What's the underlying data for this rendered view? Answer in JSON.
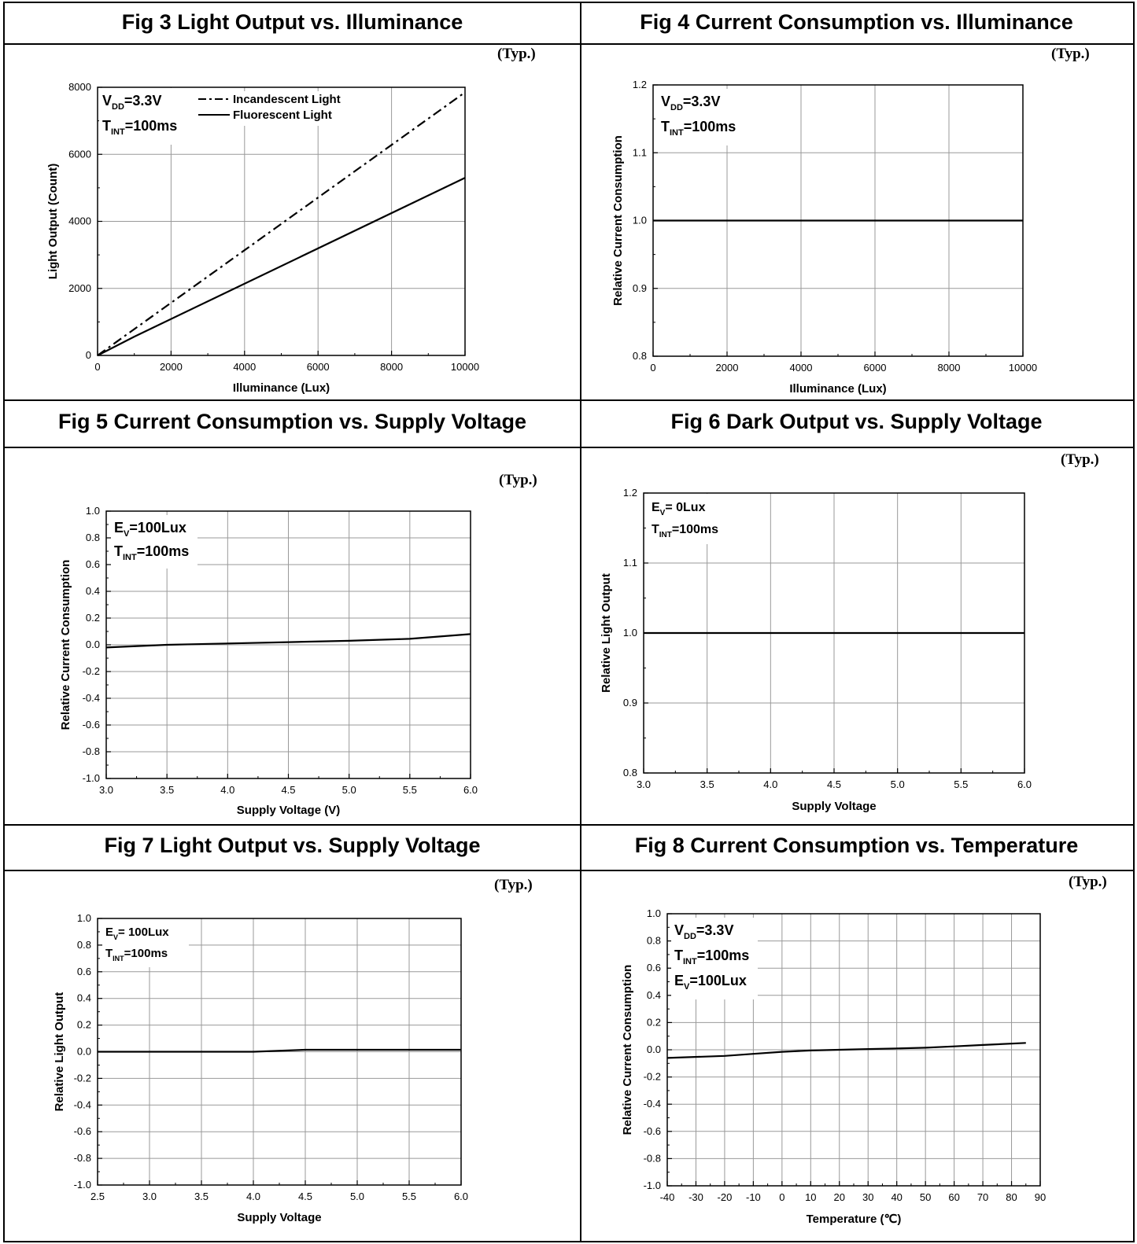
{
  "typ_label": "(Typ.)",
  "figures": [
    {
      "title": "Fig 3 Light Output vs. Illuminance",
      "chart_data": {
        "type": "line",
        "xlabel": "Illuminance (Lux)",
        "ylabel": "Light Output (Count)",
        "xlim": [
          0,
          10000
        ],
        "ylim": [
          0,
          8000
        ],
        "x_ticks": [
          "0",
          "2000",
          "4000",
          "6000",
          "8000",
          "10000"
        ],
        "y_ticks": [
          "0",
          "2000",
          "4000",
          "6000",
          "8000"
        ],
        "grid": true,
        "annotation": [
          "V_DD=3.3V",
          "T_INT=100ms"
        ],
        "legend": "top-left",
        "series": [
          {
            "name": "Incandescent Light",
            "style": "dashdot",
            "x": [
              0,
              10000
            ],
            "y": [
              0,
              7850
            ]
          },
          {
            "name": "Fluorescent Light",
            "style": "solid",
            "x": [
              0,
              1000,
              10000
            ],
            "y": [
              0,
              560,
              5300
            ]
          }
        ]
      }
    },
    {
      "title": "Fig 4 Current Consumption vs. Illuminance",
      "chart_data": {
        "type": "line",
        "xlabel": "Illuminance (Lux)",
        "ylabel": "Relative Current Consumption",
        "xlim": [
          0,
          10000
        ],
        "ylim": [
          0.8,
          1.2
        ],
        "x_ticks": [
          "0",
          "2000",
          "4000",
          "6000",
          "8000",
          "10000"
        ],
        "y_ticks": [
          "0.8",
          "0.9",
          "1.0",
          "1.1",
          "1.2"
        ],
        "grid": true,
        "annotation": [
          "V_DD=3.3V",
          "T_INT=100ms"
        ],
        "series": [
          {
            "style": "solid",
            "x": [
              0,
              10000
            ],
            "y": [
              1.0,
              1.0
            ]
          }
        ]
      }
    },
    {
      "title": "Fig 5 Current Consumption vs. Supply Voltage",
      "chart_data": {
        "type": "line",
        "xlabel": "Supply Voltage (V)",
        "ylabel": "Relative Current Consumption",
        "xlim": [
          3.0,
          6.0
        ],
        "ylim": [
          -1.0,
          1.0
        ],
        "x_ticks": [
          "3.0",
          "3.5",
          "4.0",
          "4.5",
          "5.0",
          "5.5",
          "6.0"
        ],
        "y_ticks": [
          "-1.0",
          "-0.8",
          "-0.6",
          "-0.4",
          "-0.2",
          "0.0",
          "0.2",
          "0.4",
          "0.6",
          "0.8",
          "1.0"
        ],
        "grid": true,
        "annotation": [
          "E_V=100Lux",
          "T_INT=100ms"
        ],
        "series": [
          {
            "style": "solid",
            "x": [
              3.0,
              3.5,
              4.0,
              4.5,
              5.0,
              5.5,
              6.0
            ],
            "y": [
              -0.02,
              0.0,
              0.01,
              0.02,
              0.03,
              0.045,
              0.08
            ]
          }
        ]
      }
    },
    {
      "title": "Fig 6 Dark Output vs. Supply Voltage",
      "chart_data": {
        "type": "line",
        "xlabel": "Supply Voltage",
        "ylabel": "Relative Light Output",
        "xlim": [
          3.0,
          6.0
        ],
        "ylim": [
          0.8,
          1.2
        ],
        "x_ticks": [
          "3.0",
          "3.5",
          "4.0",
          "4.5",
          "5.0",
          "5.5",
          "6.0"
        ],
        "y_ticks": [
          "0.8",
          "0.9",
          "1.0",
          "1.1",
          "1.2"
        ],
        "grid": true,
        "annotation": [
          "E_V= 0Lux",
          "T_INT=100ms"
        ],
        "series": [
          {
            "style": "solid",
            "x": [
              3.0,
              6.0
            ],
            "y": [
              1.0,
              1.0
            ]
          }
        ]
      }
    },
    {
      "title": "Fig 7 Light Output vs. Supply Voltage",
      "chart_data": {
        "type": "line",
        "xlabel": "Supply Voltage",
        "ylabel": "Relative Light Output",
        "xlim": [
          2.5,
          6.0
        ],
        "ylim": [
          -1.0,
          1.0
        ],
        "x_ticks": [
          "2.5",
          "3.0",
          "3.5",
          "4.0",
          "4.5",
          "5.0",
          "5.5",
          "6.0"
        ],
        "y_ticks": [
          "-1.0",
          "-0.8",
          "-0.6",
          "-0.4",
          "-0.2",
          "0.0",
          "0.2",
          "0.4",
          "0.6",
          "0.8",
          "1.0"
        ],
        "grid": true,
        "annotation": [
          "E_V= 100Lux",
          "T_INT=100ms"
        ],
        "series": [
          {
            "style": "solid",
            "x": [
              2.5,
              4.0,
              4.5,
              6.0
            ],
            "y": [
              0.0,
              0.0,
              0.015,
              0.015
            ]
          }
        ]
      }
    },
    {
      "title": "Fig 8 Current Consumption vs. Temperature",
      "chart_data": {
        "type": "line",
        "xlabel": "Temperature (℃)",
        "ylabel": "Relative Current Consumption",
        "xlim": [
          -40,
          90
        ],
        "ylim": [
          -1.0,
          1.0
        ],
        "x_ticks": [
          "-40",
          "-30",
          "-20",
          "-10",
          "0",
          "10",
          "20",
          "30",
          "40",
          "50",
          "60",
          "70",
          "80",
          "90"
        ],
        "y_ticks": [
          "-1.0",
          "-0.8",
          "-0.6",
          "-0.4",
          "-0.2",
          "0.0",
          "0.2",
          "0.4",
          "0.6",
          "0.8",
          "1.0"
        ],
        "grid": true,
        "annotation": [
          "V_DD=3.3V",
          "T_INT=100ms",
          "E_V=100Lux"
        ],
        "series": [
          {
            "style": "solid",
            "x": [
              -40,
              -20,
              -10,
              0,
              10,
              20,
              30,
              40,
              50,
              60,
              70,
              85
            ],
            "y": [
              -0.06,
              -0.045,
              -0.03,
              -0.015,
              -0.005,
              0.0,
              0.005,
              0.01,
              0.015,
              0.025,
              0.035,
              0.05
            ]
          }
        ]
      }
    }
  ]
}
